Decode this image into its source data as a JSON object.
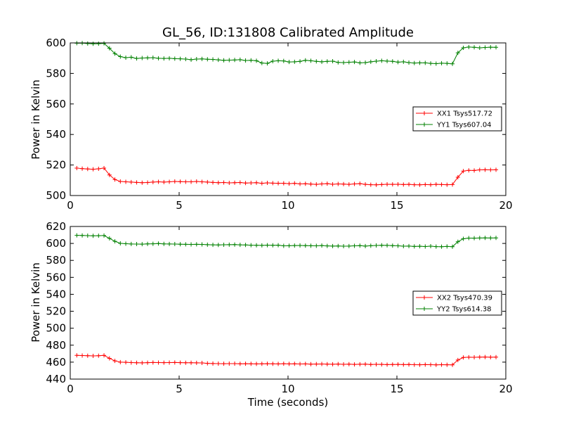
{
  "figure": {
    "title": "GL_56, ID:131808 Calibrated Amplitude"
  },
  "chart_data": [
    {
      "type": "line",
      "title": "GL_56, ID:131808 Calibrated Amplitude",
      "xlabel": "",
      "ylabel": "Power in Kelvin",
      "xlim": [
        0,
        20
      ],
      "ylim": [
        500,
        600
      ],
      "xticks": [
        0,
        5,
        10,
        15,
        20
      ],
      "yticks": [
        500,
        520,
        540,
        560,
        580,
        600
      ],
      "grid": false,
      "legend_position": "right",
      "x": [
        0.3,
        0.55,
        0.8,
        1.05,
        1.3,
        1.55,
        1.8,
        2.05,
        2.3,
        2.55,
        2.8,
        3.05,
        3.3,
        3.55,
        3.8,
        4.05,
        4.3,
        4.55,
        4.8,
        5.05,
        5.3,
        5.55,
        5.8,
        6.05,
        6.3,
        6.55,
        6.8,
        7.05,
        7.3,
        7.55,
        7.8,
        8.05,
        8.3,
        8.55,
        8.8,
        9.05,
        9.3,
        9.55,
        9.8,
        10.05,
        10.3,
        10.55,
        10.8,
        11.05,
        11.3,
        11.55,
        11.8,
        12.05,
        12.3,
        12.55,
        12.8,
        13.05,
        13.3,
        13.55,
        13.8,
        14.05,
        14.3,
        14.55,
        14.8,
        15.05,
        15.3,
        15.55,
        15.8,
        16.05,
        16.3,
        16.55,
        16.8,
        17.05,
        17.3,
        17.55,
        17.8,
        18.05,
        18.3,
        18.55,
        18.8,
        19.05,
        19.3,
        19.55
      ],
      "series": [
        {
          "name": "XX1 Tsys517.72",
          "color": "#ff0000",
          "values": [
            518,
            517.6,
            517.4,
            517.2,
            517.5,
            518,
            513.5,
            510.5,
            509.2,
            509,
            508.8,
            508.6,
            508.4,
            508.5,
            508.8,
            509,
            508.8,
            509,
            509.2,
            509.1,
            509,
            509,
            509.2,
            509,
            508.8,
            508.6,
            508.4,
            508.5,
            508.3,
            508.4,
            508.5,
            508.2,
            508.3,
            508.4,
            508,
            508.3,
            508.1,
            508,
            508,
            507.8,
            508,
            507.6,
            507.7,
            507.5,
            507.3,
            507.6,
            507.8,
            507.4,
            507.6,
            507.5,
            507.3,
            507.6,
            507.8,
            507.3,
            507.1,
            507,
            507.2,
            507.4,
            507.3,
            507.4,
            507.2,
            507.3,
            507.1,
            507,
            507.2,
            507.1,
            507.3,
            507.2,
            507.1,
            507.2,
            512,
            516,
            516.5,
            516.4,
            516.8,
            516.9,
            516.8,
            516.9
          ]
        },
        {
          "name": "YY1 Tsys607.04",
          "color": "#008000",
          "values": [
            599.8,
            599.9,
            599.6,
            599.4,
            599.5,
            599.7,
            596.5,
            593,
            591,
            590.3,
            590.6,
            589.8,
            590.1,
            590.2,
            590.3,
            589.9,
            589.8,
            589.9,
            589.7,
            589.6,
            589.4,
            589.0,
            589.4,
            589.5,
            589.3,
            589.2,
            588.9,
            588.6,
            588.7,
            588.8,
            589.0,
            588.5,
            588.6,
            588.3,
            586.8,
            586.6,
            588,
            588.3,
            588.2,
            587.5,
            587.6,
            587.9,
            588.6,
            588.3,
            587.9,
            587.6,
            587.9,
            588,
            587.2,
            587.1,
            587.3,
            587.5,
            586.9,
            587.1,
            587.6,
            588,
            588.3,
            588.1,
            587.9,
            587.4,
            587.6,
            587.1,
            586.8,
            586.9,
            586.9,
            586.6,
            586.4,
            586.7,
            586.6,
            586.3,
            593.5,
            596.8,
            597.3,
            597.1,
            596.8,
            597,
            597.2,
            597.1
          ]
        }
      ]
    },
    {
      "type": "line",
      "title": "",
      "xlabel": "Time (seconds)",
      "ylabel": "Power in Kelvin",
      "xlim": [
        0,
        20
      ],
      "ylim": [
        440,
        620
      ],
      "xticks": [
        0,
        5,
        10,
        15,
        20
      ],
      "yticks": [
        440,
        460,
        480,
        500,
        520,
        540,
        560,
        580,
        600,
        620
      ],
      "grid": false,
      "legend_position": "right",
      "x": [
        0.3,
        0.55,
        0.8,
        1.05,
        1.3,
        1.55,
        1.8,
        2.05,
        2.3,
        2.55,
        2.8,
        3.05,
        3.3,
        3.55,
        3.8,
        4.05,
        4.3,
        4.55,
        4.8,
        5.05,
        5.3,
        5.55,
        5.8,
        6.05,
        6.3,
        6.55,
        6.8,
        7.05,
        7.3,
        7.55,
        7.8,
        8.05,
        8.3,
        8.55,
        8.8,
        9.05,
        9.3,
        9.55,
        9.8,
        10.05,
        10.3,
        10.55,
        10.8,
        11.05,
        11.3,
        11.55,
        11.8,
        12.05,
        12.3,
        12.55,
        12.8,
        13.05,
        13.3,
        13.55,
        13.8,
        14.05,
        14.3,
        14.55,
        14.8,
        15.05,
        15.3,
        15.55,
        15.8,
        16.05,
        16.3,
        16.55,
        16.8,
        17.05,
        17.3,
        17.55,
        17.8,
        18.05,
        18.3,
        18.55,
        18.8,
        19.05,
        19.3,
        19.55
      ],
      "series": [
        {
          "name": "XX2 Tsys470.39",
          "color": "#ff0000",
          "values": [
            468,
            467.8,
            467.6,
            467.4,
            467.6,
            468,
            464.5,
            461.5,
            460,
            459.8,
            459.5,
            459.3,
            459.2,
            459.4,
            459.6,
            459.5,
            459.4,
            459.5,
            459.6,
            459.4,
            459.3,
            459.3,
            459.2,
            459.1,
            458.6,
            458.4,
            458.2,
            458.1,
            458.2,
            458.3,
            458.0,
            458.1,
            458.0,
            457.9,
            458.0,
            458.1,
            458.0,
            457.9,
            458.1,
            457.9,
            458.0,
            457.8,
            457.9,
            457.6,
            457.7,
            457.8,
            457.6,
            457.5,
            457.7,
            457.4,
            457.6,
            457.3,
            457.5,
            457.6,
            457.2,
            457.4,
            457.3,
            457.1,
            457.2,
            457.3,
            457.1,
            457.2,
            457.0,
            456.9,
            457.1,
            457.0,
            456.8,
            457.0,
            456.9,
            456.8,
            462.5,
            465.5,
            465.8,
            465.7,
            465.9,
            466.0,
            465.8,
            465.9
          ]
        },
        {
          "name": "YY2 Tsys614.38",
          "color": "#008000",
          "values": [
            609.5,
            609.4,
            609.2,
            609.0,
            609.1,
            609.3,
            606,
            602.5,
            600.1,
            599.7,
            599.4,
            599.3,
            599.2,
            599.5,
            599.6,
            599.9,
            599.5,
            599.4,
            599.3,
            599.1,
            599.0,
            598.9,
            599.0,
            598.8,
            598.5,
            598.3,
            598.2,
            598.4,
            598.5,
            598.6,
            598.3,
            598.2,
            597.9,
            597.8,
            597.7,
            597.9,
            597.8,
            597.9,
            597.2,
            597.3,
            597.5,
            597.6,
            597.4,
            597.3,
            597.2,
            597.5,
            597.1,
            596.9,
            597.0,
            596.8,
            596.9,
            597.2,
            597.4,
            596.9,
            597.3,
            597.6,
            597.8,
            597.7,
            597.4,
            597.2,
            596.8,
            596.9,
            596.5,
            596.7,
            596.4,
            596.8,
            596.3,
            596.1,
            596.5,
            596.2,
            602,
            605.5,
            606.3,
            606.2,
            606.4,
            606.5,
            606.4,
            606.5
          ]
        }
      ]
    }
  ]
}
